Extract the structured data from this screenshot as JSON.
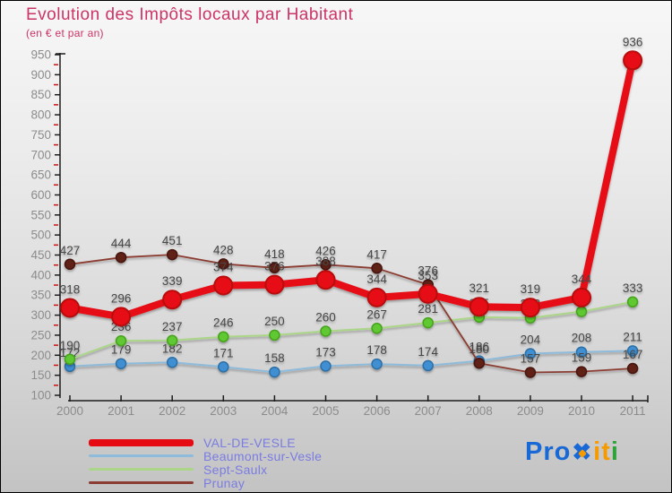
{
  "title": "Evolution des Impôts locaux par Habitant",
  "subtitle": "(en € et par an)",
  "chart_data": {
    "type": "line",
    "x": [
      2000,
      2001,
      2002,
      2003,
      2004,
      2005,
      2006,
      2007,
      2008,
      2009,
      2010,
      2011
    ],
    "series": [
      {
        "name": "Beaumont-sur-Vesle",
        "values": [
          172,
          179,
          182,
          171,
          158,
          173,
          178,
          174,
          186,
          204,
          208,
          211
        ],
        "line_color": "#8fbbda",
        "dot_color": "#3f8fd2",
        "dot_stroke": "#2d6fa5",
        "line_width": 2,
        "dot_radius": 5.5,
        "thick": false
      },
      {
        "name": "Sept-Saulx",
        "values": [
          190,
          236,
          237,
          246,
          250,
          260,
          267,
          281,
          295,
          293,
          309,
          333
        ],
        "line_color": "#abd687",
        "dot_color": "#5ec832",
        "dot_stroke": "#46a21f",
        "line_width": 2,
        "dot_radius": 5.5,
        "thick": false
      },
      {
        "name": "Prunay",
        "values": [
          427,
          444,
          451,
          428,
          418,
          426,
          417,
          376,
          180,
          157,
          159,
          167
        ],
        "line_color": "#8b3d33",
        "dot_color": "#612019",
        "dot_stroke": "#471410",
        "line_width": 1.8,
        "dot_radius": 5.5,
        "thick": false
      },
      {
        "name": "VAL-DE-VESLE",
        "values": [
          318,
          296,
          339,
          374,
          376,
          388,
          344,
          353,
          321,
          319,
          344,
          936
        ],
        "line_color": "#e60b12",
        "dot_color": "#e60b12",
        "dot_stroke": "#b8070d",
        "line_width": 8,
        "dot_radius": 10,
        "thick": true
      }
    ],
    "legend_order": [
      "VAL-DE-VESLE",
      "Beaumont-sur-Vesle",
      "Sept-Saulx",
      "Prunay"
    ],
    "ylim": [
      100,
      950
    ],
    "ytick_step": 50,
    "grid": false,
    "legend_position": "bottom-left",
    "label_color": "#474747",
    "axis_color": "#1c1c1c",
    "tick_label_color": "#8c8c8c",
    "minor_tick_color": "#cc1111"
  },
  "logo": {
    "name": "Proxiti",
    "parts": [
      {
        "text": "Pro",
        "color": "#1868d6",
        "x": false
      },
      {
        "text": "✖",
        "color": "#1868d6",
        "x": true
      },
      {
        "text": "i",
        "color": "#f59a00",
        "x": false
      },
      {
        "text": "t",
        "color": "#f59a00",
        "x": false
      },
      {
        "text": "i",
        "color": "#2fa33a",
        "x": false
      }
    ]
  }
}
